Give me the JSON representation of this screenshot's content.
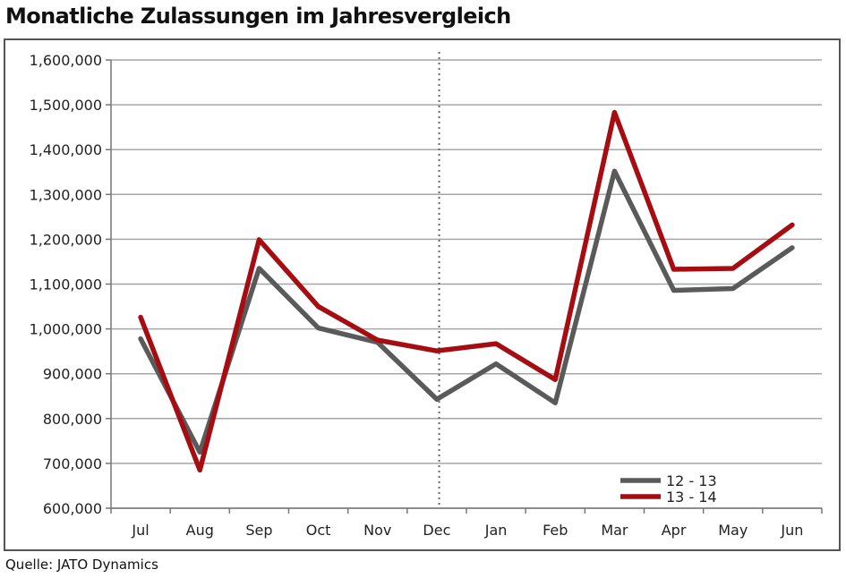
{
  "title": "Monatliche Zulassungen im Jahresvergleich",
  "source": "Quelle: JATO Dynamics",
  "chart_data": {
    "type": "line",
    "title": "Monatliche Zulassungen im Jahresvergleich",
    "categories": [
      "Jul",
      "Aug",
      "Sep",
      "Oct",
      "Nov",
      "Dec",
      "Jan",
      "Feb",
      "Mar",
      "Apr",
      "May",
      "Jun"
    ],
    "y_ticks": [
      "600,000",
      "700,000",
      "800,000",
      "900,000",
      "1,000,000",
      "1,100,000",
      "1,200,000",
      "1,300,000",
      "1,400,000",
      "1,500,000",
      "1,600,000"
    ],
    "ylim": [
      600000,
      1600000
    ],
    "grid": true,
    "legend_position": "bottom-right",
    "divider_after_category": "Dec",
    "series": [
      {
        "name": "12 - 13",
        "color": "#5a5a5a",
        "values": [
          978000,
          725000,
          1135000,
          1002000,
          970000,
          843000,
          922000,
          835000,
          1352000,
          1086000,
          1090000,
          1181000
        ]
      },
      {
        "name": "13 - 14",
        "color": "#a50d12",
        "values": [
          1026000,
          685000,
          1199000,
          1050000,
          975000,
          951000,
          967000,
          887000,
          1483000,
          1133000,
          1135000,
          1232000
        ]
      }
    ]
  }
}
